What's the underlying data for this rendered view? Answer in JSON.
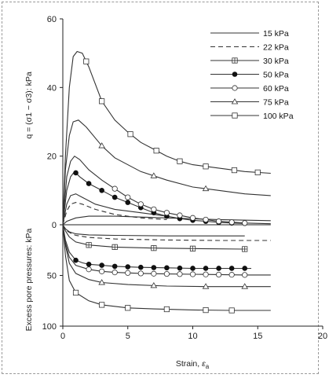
{
  "chart_data": {
    "type": "line",
    "x_label_prefix": "Strain, ",
    "x_label_symbol": "ε",
    "x_label_sub": "a",
    "x_ticks": [
      0,
      5,
      10,
      15,
      20
    ],
    "x_tick_labels": [
      "0",
      "5",
      "10",
      "15",
      "20"
    ],
    "xlim": [
      0,
      20
    ],
    "upper_y_label": "q = (σ1 − σ3): kPa",
    "upper_y_ticks": [
      0,
      20,
      40,
      60
    ],
    "upper_y_tick_labels": [
      "0",
      "20",
      "40",
      "60"
    ],
    "upper_ylim": [
      0,
      60
    ],
    "lower_y_label": "Excess pore pressures: kPa",
    "lower_y_ticks": [
      50,
      100
    ],
    "lower_y_tick_labels": [
      "50",
      "100"
    ],
    "lower_ylim": [
      0,
      100
    ],
    "lower_axis_inverted": true,
    "legend_position": "top-right",
    "grid": false,
    "series": [
      {
        "name": "15 kPa",
        "marker": "none",
        "dashed": false,
        "deviator": [
          [
            0,
            0
          ],
          [
            0.3,
            1
          ],
          [
            1,
            2
          ],
          [
            2,
            2.5
          ],
          [
            4,
            2.5
          ],
          [
            8,
            2
          ],
          [
            12,
            1.5
          ],
          [
            16,
            1.2
          ]
        ],
        "pore": [
          [
            0,
            0
          ],
          [
            0.2,
            4
          ],
          [
            0.5,
            7
          ],
          [
            1,
            9
          ],
          [
            2,
            10
          ],
          [
            4,
            10.5
          ],
          [
            8,
            11
          ],
          [
            12,
            11
          ],
          [
            14,
            11
          ]
        ]
      },
      {
        "name": "22 kPa",
        "marker": "none",
        "dashed": true,
        "deviator": [
          [
            0,
            0
          ],
          [
            0.3,
            4
          ],
          [
            0.6,
            6
          ],
          [
            1,
            6.5
          ],
          [
            1.5,
            6
          ],
          [
            2.5,
            4.5
          ],
          [
            4,
            3
          ],
          [
            6,
            2
          ],
          [
            8,
            1.5
          ]
        ],
        "pore": [
          [
            0,
            0
          ],
          [
            0.3,
            6
          ],
          [
            0.7,
            9
          ],
          [
            1,
            10.5
          ],
          [
            2,
            12.5
          ],
          [
            4,
            14
          ],
          [
            8,
            15
          ],
          [
            12,
            15.5
          ],
          [
            16,
            15.5
          ]
        ]
      },
      {
        "name": "30 kPa",
        "marker": "square-cross",
        "dashed": false,
        "deviator": [
          [
            0,
            0
          ],
          [
            0.3,
            6
          ],
          [
            0.6,
            8.5
          ],
          [
            1,
            9
          ],
          [
            1.5,
            8
          ],
          [
            2.5,
            6
          ],
          [
            4,
            4.5
          ],
          [
            6,
            3.5
          ],
          [
            8,
            2.5
          ]
        ],
        "pore": [
          [
            0,
            0
          ],
          [
            0.2,
            6
          ],
          [
            0.5,
            12
          ],
          [
            1,
            17
          ],
          [
            2,
            20
          ],
          [
            4,
            22
          ],
          [
            7,
            23
          ],
          [
            10,
            23.5
          ],
          [
            14,
            24
          ]
        ],
        "pore_markers_x": [
          2,
          4,
          7,
          10,
          14
        ]
      },
      {
        "name": "50 kPa",
        "marker": "filled-circle",
        "dashed": false,
        "deviator": [
          [
            0,
            0
          ],
          [
            0.3,
            10
          ],
          [
            0.6,
            14
          ],
          [
            0.9,
            15.5
          ],
          [
            1.3,
            14
          ],
          [
            2,
            12
          ],
          [
            3,
            10
          ],
          [
            4,
            8
          ],
          [
            5,
            6.5
          ],
          [
            6,
            5
          ],
          [
            7,
            3.5
          ],
          [
            8,
            2.5
          ],
          [
            9,
            1.8
          ],
          [
            10,
            1.3
          ],
          [
            11,
            1
          ],
          [
            12,
            0.7
          ],
          [
            13,
            0.5
          ],
          [
            14,
            0.4
          ]
        ],
        "pore": [
          [
            0,
            0
          ],
          [
            0.2,
            15
          ],
          [
            0.5,
            27
          ],
          [
            1,
            35
          ],
          [
            1.5,
            37.5
          ],
          [
            2,
            39
          ],
          [
            3,
            40
          ],
          [
            4,
            41
          ],
          [
            6,
            42
          ],
          [
            8,
            42.5
          ],
          [
            10,
            43
          ],
          [
            12,
            43
          ],
          [
            14.5,
            43
          ]
        ],
        "deviator_markers_x": [
          1,
          2,
          3,
          4,
          5,
          6,
          7,
          8,
          9,
          10,
          11,
          12,
          13,
          14
        ],
        "pore_markers_x": [
          1,
          2,
          3,
          4,
          5,
          6,
          7,
          8,
          9,
          10,
          11,
          12,
          13,
          14
        ]
      },
      {
        "name": "60 kPa",
        "marker": "circle",
        "dashed": false,
        "deviator": [
          [
            0,
            0
          ],
          [
            0.3,
            14
          ],
          [
            0.6,
            18.5
          ],
          [
            0.9,
            20
          ],
          [
            1.3,
            19
          ],
          [
            2,
            16
          ],
          [
            3,
            13
          ],
          [
            4,
            10.5
          ],
          [
            5,
            8
          ],
          [
            6,
            6
          ],
          [
            7,
            4.5
          ],
          [
            8,
            3.5
          ],
          [
            10,
            2
          ],
          [
            12,
            1
          ],
          [
            14,
            0.5
          ],
          [
            16,
            0.3
          ]
        ],
        "pore": [
          [
            0,
            0
          ],
          [
            0.2,
            18
          ],
          [
            0.5,
            32
          ],
          [
            1,
            40
          ],
          [
            2,
            44
          ],
          [
            3,
            46
          ],
          [
            4,
            47
          ],
          [
            6,
            48
          ],
          [
            8,
            48.5
          ],
          [
            11,
            49
          ],
          [
            14,
            49.5
          ],
          [
            16,
            49.5
          ]
        ],
        "deviator_markers_x": [
          4,
          5,
          6,
          7,
          8,
          9,
          10,
          11,
          12,
          13,
          14
        ],
        "pore_markers_x": [
          2,
          3,
          4,
          5,
          6,
          7,
          8,
          9,
          10,
          11,
          12,
          13,
          14
        ]
      },
      {
        "name": "75 kPa",
        "marker": "triangle",
        "dashed": false,
        "deviator": [
          [
            0,
            0
          ],
          [
            0.2,
            16
          ],
          [
            0.5,
            26
          ],
          [
            0.8,
            30
          ],
          [
            1.2,
            30.5
          ],
          [
            1.8,
            28.5
          ],
          [
            3,
            23
          ],
          [
            4,
            19.5
          ],
          [
            6,
            15.5
          ],
          [
            8,
            13
          ],
          [
            10,
            11
          ],
          [
            12,
            10
          ],
          [
            14,
            9
          ],
          [
            16,
            8.5
          ]
        ],
        "pore": [
          [
            0,
            0
          ],
          [
            0.2,
            20
          ],
          [
            0.5,
            38
          ],
          [
            1,
            48
          ],
          [
            2,
            54
          ],
          [
            3,
            57
          ],
          [
            5,
            59
          ],
          [
            8,
            60.5
          ],
          [
            11,
            61
          ],
          [
            14,
            61
          ],
          [
            16,
            61
          ]
        ],
        "deviator_markers_x": [
          3,
          7,
          11
        ],
        "pore_markers_x": [
          3,
          7,
          11,
          14
        ]
      },
      {
        "name": "100 kPa",
        "marker": "square",
        "dashed": false,
        "deviator": [
          [
            0,
            0
          ],
          [
            0.2,
            20
          ],
          [
            0.5,
            40
          ],
          [
            0.8,
            49
          ],
          [
            1.1,
            50.5
          ],
          [
            1.5,
            50
          ],
          [
            2,
            46
          ],
          [
            3,
            36
          ],
          [
            4,
            30.5
          ],
          [
            5,
            27
          ],
          [
            6,
            24
          ],
          [
            7,
            22
          ],
          [
            8,
            20
          ],
          [
            9,
            18.5
          ],
          [
            10,
            17.5
          ],
          [
            12,
            16.5
          ],
          [
            14,
            15.5
          ],
          [
            16,
            15
          ]
        ],
        "pore": [
          [
            0,
            0
          ],
          [
            0.2,
            30
          ],
          [
            0.5,
            55
          ],
          [
            1,
            67
          ],
          [
            2,
            75
          ],
          [
            3,
            79
          ],
          [
            5,
            82
          ],
          [
            7,
            83
          ],
          [
            10,
            84
          ],
          [
            13,
            84.5
          ],
          [
            16,
            84.5
          ]
        ],
        "deviator_markers_x": [
          1.8,
          3,
          5.2,
          7.2,
          9,
          11,
          13.2,
          15
        ],
        "pore_markers_x": [
          1,
          3,
          5,
          8,
          11,
          13
        ]
      }
    ]
  }
}
